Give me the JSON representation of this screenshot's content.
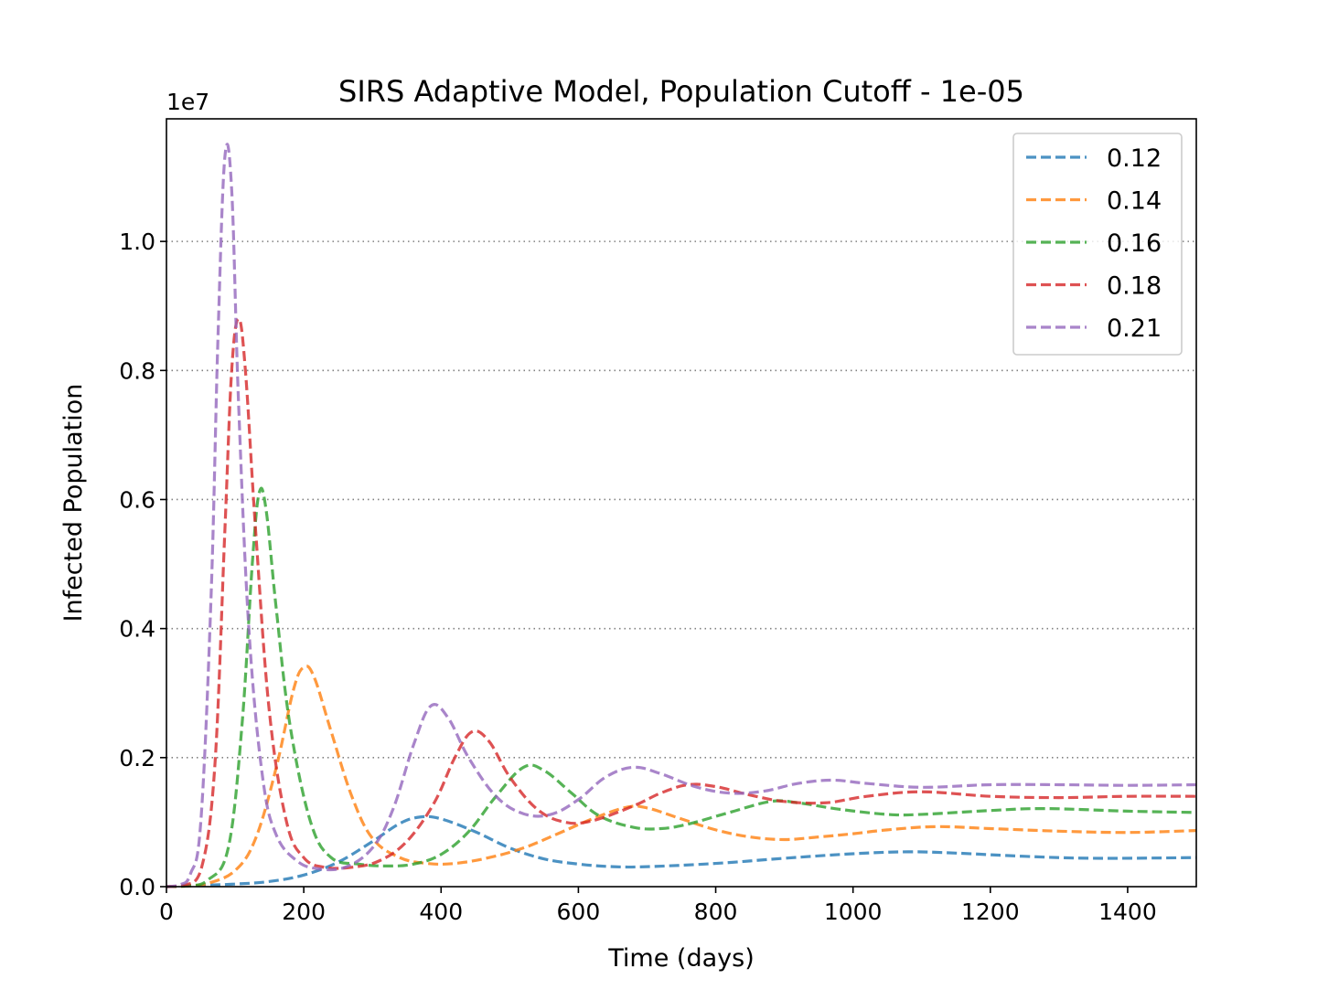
{
  "chart_data": {
    "type": "line",
    "title": "SIRS Adaptive Model, Population Cutoff - 1e-05",
    "xlabel": "Time (days)",
    "ylabel": "Infected Population",
    "y_offset_label": "1e7",
    "xlim": [
      0,
      1500
    ],
    "ylim": [
      0,
      1.19
    ],
    "xticks": [
      0,
      200,
      400,
      600,
      800,
      1000,
      1200,
      1400
    ],
    "xtick_labels": [
      "0",
      "200",
      "400",
      "600",
      "800",
      "1000",
      "1200",
      "1400"
    ],
    "yticks": [
      0,
      0.2,
      0.4,
      0.6,
      0.8,
      1.0
    ],
    "ytick_labels": [
      "0.0",
      "0.2",
      "0.4",
      "0.6",
      "0.8",
      "1.0"
    ],
    "grid": "horizontal dotted",
    "legend_position": "top-right",
    "series": [
      {
        "name": "0.12",
        "color": "#1f77b4",
        "points": [
          [
            0,
            0.0
          ],
          [
            50,
            0.002
          ],
          [
            100,
            0.004
          ],
          [
            150,
            0.008
          ],
          [
            200,
            0.018
          ],
          [
            250,
            0.038
          ],
          [
            300,
            0.07
          ],
          [
            340,
            0.098
          ],
          [
            370,
            0.108
          ],
          [
            400,
            0.105
          ],
          [
            450,
            0.085
          ],
          [
            500,
            0.06
          ],
          [
            550,
            0.043
          ],
          [
            600,
            0.035
          ],
          [
            650,
            0.031
          ],
          [
            700,
            0.031
          ],
          [
            800,
            0.036
          ],
          [
            900,
            0.044
          ],
          [
            1000,
            0.051
          ],
          [
            1080,
            0.054
          ],
          [
            1150,
            0.052
          ],
          [
            1250,
            0.047
          ],
          [
            1350,
            0.044
          ],
          [
            1500,
            0.045
          ]
        ]
      },
      {
        "name": "0.14",
        "color": "#ff7f0e",
        "points": [
          [
            0,
            0.0
          ],
          [
            30,
            0.001
          ],
          [
            60,
            0.005
          ],
          [
            100,
            0.025
          ],
          [
            130,
            0.075
          ],
          [
            160,
            0.185
          ],
          [
            185,
            0.305
          ],
          [
            200,
            0.34
          ],
          [
            215,
            0.325
          ],
          [
            240,
            0.24
          ],
          [
            270,
            0.14
          ],
          [
            300,
            0.075
          ],
          [
            340,
            0.045
          ],
          [
            380,
            0.036
          ],
          [
            420,
            0.036
          ],
          [
            470,
            0.045
          ],
          [
            520,
            0.06
          ],
          [
            570,
            0.082
          ],
          [
            620,
            0.105
          ],
          [
            670,
            0.123
          ],
          [
            700,
            0.122
          ],
          [
            750,
            0.105
          ],
          [
            800,
            0.088
          ],
          [
            850,
            0.077
          ],
          [
            900,
            0.073
          ],
          [
            950,
            0.077
          ],
          [
            1000,
            0.082
          ],
          [
            1050,
            0.088
          ],
          [
            1120,
            0.093
          ],
          [
            1200,
            0.09
          ],
          [
            1300,
            0.086
          ],
          [
            1400,
            0.084
          ],
          [
            1500,
            0.087
          ]
        ]
      },
      {
        "name": "0.16",
        "color": "#2ca02c",
        "points": [
          [
            0,
            0.0
          ],
          [
            30,
            0.001
          ],
          [
            60,
            0.01
          ],
          [
            90,
            0.06
          ],
          [
            110,
            0.25
          ],
          [
            125,
            0.5
          ],
          [
            135,
            0.61
          ],
          [
            145,
            0.585
          ],
          [
            160,
            0.43
          ],
          [
            180,
            0.25
          ],
          [
            210,
            0.1
          ],
          [
            240,
            0.045
          ],
          [
            280,
            0.035
          ],
          [
            320,
            0.032
          ],
          [
            360,
            0.035
          ],
          [
            400,
            0.05
          ],
          [
            440,
            0.085
          ],
          [
            480,
            0.14
          ],
          [
            520,
            0.185
          ],
          [
            550,
            0.18
          ],
          [
            590,
            0.145
          ],
          [
            630,
            0.11
          ],
          [
            680,
            0.092
          ],
          [
            720,
            0.09
          ],
          [
            760,
            0.097
          ],
          [
            820,
            0.115
          ],
          [
            880,
            0.132
          ],
          [
            920,
            0.13
          ],
          [
            980,
            0.12
          ],
          [
            1050,
            0.112
          ],
          [
            1100,
            0.112
          ],
          [
            1200,
            0.118
          ],
          [
            1280,
            0.121
          ],
          [
            1400,
            0.117
          ],
          [
            1500,
            0.115
          ]
        ]
      },
      {
        "name": "0.18",
        "color": "#d62728",
        "points": [
          [
            0,
            0.0
          ],
          [
            25,
            0.002
          ],
          [
            50,
            0.025
          ],
          [
            70,
            0.18
          ],
          [
            85,
            0.55
          ],
          [
            95,
            0.8
          ],
          [
            105,
            0.88
          ],
          [
            115,
            0.8
          ],
          [
            130,
            0.55
          ],
          [
            150,
            0.27
          ],
          [
            175,
            0.1
          ],
          [
            200,
            0.045
          ],
          [
            230,
            0.03
          ],
          [
            270,
            0.03
          ],
          [
            310,
            0.04
          ],
          [
            350,
            0.07
          ],
          [
            390,
            0.13
          ],
          [
            420,
            0.2
          ],
          [
            445,
            0.24
          ],
          [
            470,
            0.225
          ],
          [
            500,
            0.17
          ],
          [
            540,
            0.12
          ],
          [
            580,
            0.1
          ],
          [
            620,
            0.102
          ],
          [
            680,
            0.125
          ],
          [
            720,
            0.145
          ],
          [
            760,
            0.158
          ],
          [
            800,
            0.155
          ],
          [
            850,
            0.142
          ],
          [
            900,
            0.132
          ],
          [
            960,
            0.13
          ],
          [
            1020,
            0.14
          ],
          [
            1100,
            0.147
          ],
          [
            1200,
            0.14
          ],
          [
            1300,
            0.138
          ],
          [
            1400,
            0.14
          ],
          [
            1500,
            0.14
          ]
        ]
      },
      {
        "name": "0.21",
        "color": "#9467bd",
        "points": [
          [
            0,
            0.0
          ],
          [
            20,
            0.003
          ],
          [
            35,
            0.02
          ],
          [
            50,
            0.1
          ],
          [
            65,
            0.45
          ],
          [
            75,
            0.85
          ],
          [
            85,
            1.13
          ],
          [
            95,
            1.08
          ],
          [
            105,
            0.75
          ],
          [
            120,
            0.4
          ],
          [
            140,
            0.17
          ],
          [
            160,
            0.08
          ],
          [
            190,
            0.04
          ],
          [
            220,
            0.028
          ],
          [
            260,
            0.03
          ],
          [
            300,
            0.06
          ],
          [
            330,
            0.12
          ],
          [
            360,
            0.22
          ],
          [
            385,
            0.28
          ],
          [
            410,
            0.262
          ],
          [
            440,
            0.2
          ],
          [
            480,
            0.14
          ],
          [
            520,
            0.113
          ],
          [
            560,
            0.112
          ],
          [
            600,
            0.135
          ],
          [
            640,
            0.17
          ],
          [
            680,
            0.185
          ],
          [
            720,
            0.175
          ],
          [
            770,
            0.155
          ],
          [
            820,
            0.145
          ],
          [
            870,
            0.148
          ],
          [
            920,
            0.16
          ],
          [
            970,
            0.165
          ],
          [
            1020,
            0.16
          ],
          [
            1100,
            0.154
          ],
          [
            1200,
            0.158
          ],
          [
            1300,
            0.158
          ],
          [
            1400,
            0.157
          ],
          [
            1500,
            0.158
          ]
        ]
      }
    ]
  }
}
